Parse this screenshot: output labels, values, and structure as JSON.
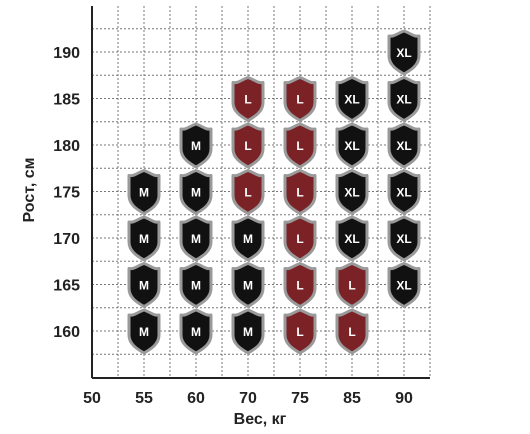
{
  "chart_data": {
    "type": "table",
    "title": "",
    "xlabel": "Вес, кг",
    "ylabel": "Рост, см",
    "x_ticks": [
      "50",
      "55",
      "60",
      "70",
      "75",
      "85",
      "90"
    ],
    "y_ticks": [
      "160",
      "165",
      "170",
      "175",
      "180",
      "185",
      "190"
    ],
    "grid": true,
    "colors": {
      "M": "#111111",
      "L": "#7a2226",
      "XL": "#111111",
      "border": "#9a9a9a"
    },
    "cells": [
      {
        "weight": "55",
        "height": "160",
        "size": "M"
      },
      {
        "weight": "55",
        "height": "165",
        "size": "M"
      },
      {
        "weight": "55",
        "height": "170",
        "size": "M"
      },
      {
        "weight": "55",
        "height": "175",
        "size": "M"
      },
      {
        "weight": "60",
        "height": "160",
        "size": "M"
      },
      {
        "weight": "60",
        "height": "165",
        "size": "M"
      },
      {
        "weight": "60",
        "height": "170",
        "size": "M"
      },
      {
        "weight": "60",
        "height": "175",
        "size": "M"
      },
      {
        "weight": "60",
        "height": "180",
        "size": "M"
      },
      {
        "weight": "70",
        "height": "160",
        "size": "M"
      },
      {
        "weight": "70",
        "height": "165",
        "size": "M"
      },
      {
        "weight": "70",
        "height": "170",
        "size": "M"
      },
      {
        "weight": "70",
        "height": "175",
        "size": "L"
      },
      {
        "weight": "70",
        "height": "180",
        "size": "L"
      },
      {
        "weight": "70",
        "height": "185",
        "size": "L"
      },
      {
        "weight": "75",
        "height": "160",
        "size": "L"
      },
      {
        "weight": "75",
        "height": "165",
        "size": "L"
      },
      {
        "weight": "75",
        "height": "170",
        "size": "L"
      },
      {
        "weight": "75",
        "height": "175",
        "size": "L"
      },
      {
        "weight": "75",
        "height": "180",
        "size": "L"
      },
      {
        "weight": "75",
        "height": "185",
        "size": "L"
      },
      {
        "weight": "85",
        "height": "160",
        "size": "L"
      },
      {
        "weight": "85",
        "height": "165",
        "size": "L"
      },
      {
        "weight": "85",
        "height": "170",
        "size": "XL"
      },
      {
        "weight": "85",
        "height": "175",
        "size": "XL"
      },
      {
        "weight": "85",
        "height": "180",
        "size": "XL"
      },
      {
        "weight": "85",
        "height": "185",
        "size": "XL"
      },
      {
        "weight": "90",
        "height": "165",
        "size": "XL"
      },
      {
        "weight": "90",
        "height": "170",
        "size": "XL"
      },
      {
        "weight": "90",
        "height": "175",
        "size": "XL"
      },
      {
        "weight": "90",
        "height": "180",
        "size": "XL"
      },
      {
        "weight": "90",
        "height": "185",
        "size": "XL"
      },
      {
        "weight": "90",
        "height": "190",
        "size": "XL"
      }
    ]
  }
}
